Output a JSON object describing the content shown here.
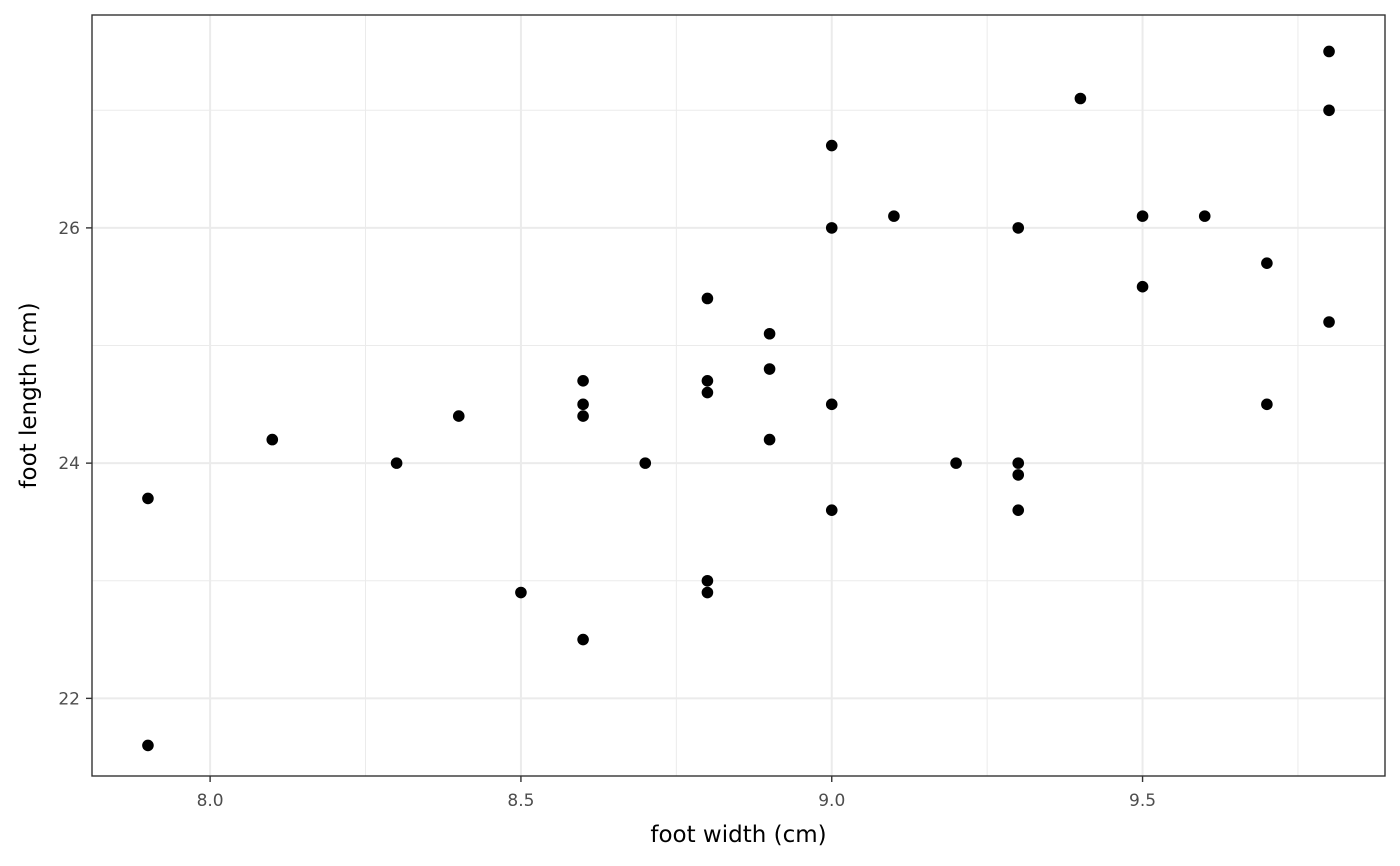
{
  "chart_data": {
    "type": "scatter",
    "title": "",
    "xlabel": "foot width (cm)",
    "ylabel": "foot length (cm)",
    "xlim": [
      7.81,
      9.89
    ],
    "ylim": [
      21.34,
      27.81
    ],
    "x_ticks": [
      8.0,
      8.5,
      9.0,
      9.5
    ],
    "x_tick_labels": [
      "8.0",
      "8.5",
      "9.0",
      "9.5"
    ],
    "y_ticks": [
      22,
      24,
      26
    ],
    "y_tick_labels": [
      "22",
      "24",
      "26"
    ],
    "grid": true,
    "legend": "none",
    "point_color": "#000000",
    "points": [
      {
        "x": 7.9,
        "y": 23.7
      },
      {
        "x": 7.9,
        "y": 21.6
      },
      {
        "x": 8.1,
        "y": 24.2
      },
      {
        "x": 8.3,
        "y": 24.0
      },
      {
        "x": 8.4,
        "y": 24.4
      },
      {
        "x": 8.5,
        "y": 22.9
      },
      {
        "x": 8.6,
        "y": 24.7
      },
      {
        "x": 8.6,
        "y": 24.5
      },
      {
        "x": 8.6,
        "y": 24.4
      },
      {
        "x": 8.6,
        "y": 22.5
      },
      {
        "x": 8.7,
        "y": 24.0
      },
      {
        "x": 8.8,
        "y": 25.4
      },
      {
        "x": 8.8,
        "y": 24.7
      },
      {
        "x": 8.8,
        "y": 24.6
      },
      {
        "x": 8.8,
        "y": 23.0
      },
      {
        "x": 8.8,
        "y": 22.9
      },
      {
        "x": 8.9,
        "y": 25.1
      },
      {
        "x": 8.9,
        "y": 24.8
      },
      {
        "x": 8.9,
        "y": 24.2
      },
      {
        "x": 9.0,
        "y": 26.7
      },
      {
        "x": 9.0,
        "y": 26.0
      },
      {
        "x": 9.0,
        "y": 24.5
      },
      {
        "x": 9.0,
        "y": 23.6
      },
      {
        "x": 9.1,
        "y": 26.1
      },
      {
        "x": 9.2,
        "y": 24.0
      },
      {
        "x": 9.3,
        "y": 26.0
      },
      {
        "x": 9.3,
        "y": 24.0
      },
      {
        "x": 9.3,
        "y": 23.9
      },
      {
        "x": 9.3,
        "y": 23.6
      },
      {
        "x": 9.4,
        "y": 27.1
      },
      {
        "x": 9.5,
        "y": 26.1
      },
      {
        "x": 9.5,
        "y": 25.5
      },
      {
        "x": 9.6,
        "y": 26.1
      },
      {
        "x": 9.7,
        "y": 25.7
      },
      {
        "x": 9.7,
        "y": 24.5
      },
      {
        "x": 9.8,
        "y": 27.5
      },
      {
        "x": 9.8,
        "y": 27.0
      },
      {
        "x": 9.8,
        "y": 25.2
      }
    ]
  }
}
